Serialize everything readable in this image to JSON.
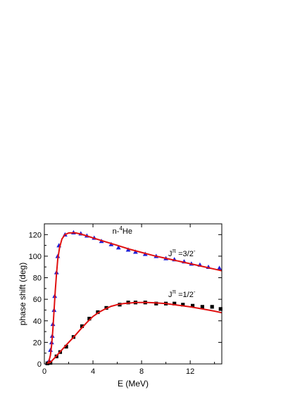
{
  "chart_data": {
    "type": "scatter",
    "title": "",
    "xlabel": "E (MeV)",
    "ylabel": "phase shift (deg)",
    "xlim": [
      0,
      14.6
    ],
    "ylim": [
      0,
      130
    ],
    "x_ticks": [
      0,
      4,
      8,
      12
    ],
    "y_ticks": [
      0,
      20,
      40,
      60,
      80,
      100,
      120
    ],
    "grid": false,
    "annotations": {
      "system": {
        "prefix": "n-",
        "sup": "4",
        "suffix": "He"
      },
      "j32": {
        "base": "J",
        "sup": "π",
        "rest": " =3/2",
        "sup2": "-"
      },
      "j12": {
        "base": "J",
        "sup": "π",
        "rest": " =1/2",
        "sup2": "-"
      }
    },
    "series": [
      {
        "key": "j32_points",
        "marker": "triangle",
        "color": "#1f1fd6",
        "points": [
          [
            0.25,
            1
          ],
          [
            0.4,
            3
          ],
          [
            0.5,
            13
          ],
          [
            0.6,
            20
          ],
          [
            0.65,
            26
          ],
          [
            0.7,
            37
          ],
          [
            0.8,
            50
          ],
          [
            0.85,
            63
          ],
          [
            1.0,
            85
          ],
          [
            1.1,
            100
          ],
          [
            1.2,
            110
          ],
          [
            1.7,
            120
          ],
          [
            2.4,
            122
          ],
          [
            3.0,
            121
          ],
          [
            3.5,
            119
          ],
          [
            4.1,
            117
          ],
          [
            4.7,
            114
          ],
          [
            5.5,
            111
          ],
          [
            6.1,
            108
          ],
          [
            6.9,
            106
          ],
          [
            7.5,
            104
          ],
          [
            8.3,
            102
          ],
          [
            9.2,
            100
          ],
          [
            10.0,
            98
          ],
          [
            10.7,
            97
          ],
          [
            11.5,
            95
          ],
          [
            12.1,
            93
          ],
          [
            12.8,
            92
          ],
          [
            13.5,
            90
          ],
          [
            14.4,
            89
          ]
        ]
      },
      {
        "key": "j12_points",
        "marker": "square",
        "color": "#000000",
        "points": [
          [
            0.25,
            0.5
          ],
          [
            0.5,
            1
          ],
          [
            1.0,
            7
          ],
          [
            1.3,
            11
          ],
          [
            1.8,
            16
          ],
          [
            2.4,
            25
          ],
          [
            3.1,
            35
          ],
          [
            3.7,
            42
          ],
          [
            4.4,
            48
          ],
          [
            5.1,
            52
          ],
          [
            6.2,
            55
          ],
          [
            6.9,
            57
          ],
          [
            7.5,
            57
          ],
          [
            8.3,
            57
          ],
          [
            9.2,
            56
          ],
          [
            10.0,
            56
          ],
          [
            10.7,
            56
          ],
          [
            11.4,
            55
          ],
          [
            12.2,
            54
          ],
          [
            13.0,
            53
          ],
          [
            13.8,
            53
          ],
          [
            14.5,
            51
          ]
        ]
      },
      {
        "key": "j32_fit",
        "type": "line",
        "color": "#e01010",
        "points": [
          [
            0.2,
            0
          ],
          [
            0.35,
            1.5
          ],
          [
            0.5,
            8
          ],
          [
            0.6,
            18
          ],
          [
            0.7,
            32
          ],
          [
            0.8,
            50
          ],
          [
            0.9,
            68
          ],
          [
            1.0,
            84
          ],
          [
            1.1,
            97
          ],
          [
            1.25,
            108
          ],
          [
            1.45,
            116
          ],
          [
            1.7,
            120
          ],
          [
            2.0,
            121.5
          ],
          [
            2.5,
            121.8
          ],
          [
            3.0,
            120.5
          ],
          [
            4.0,
            117
          ],
          [
            5.0,
            113.5
          ],
          [
            6.0,
            110
          ],
          [
            7.0,
            106.5
          ],
          [
            8.0,
            103.5
          ],
          [
            9.0,
            100.5
          ],
          [
            10.0,
            98
          ],
          [
            11.0,
            95.5
          ],
          [
            12.0,
            93
          ],
          [
            13.0,
            90.5
          ],
          [
            14.0,
            88
          ],
          [
            14.6,
            86.5
          ]
        ]
      },
      {
        "key": "j12_fit",
        "type": "line",
        "color": "#e01010",
        "points": [
          [
            0.2,
            0
          ],
          [
            0.5,
            1.5
          ],
          [
            0.8,
            5
          ],
          [
            1.2,
            10
          ],
          [
            1.6,
            15
          ],
          [
            2.0,
            20
          ],
          [
            2.5,
            26
          ],
          [
            3.0,
            32.5
          ],
          [
            3.5,
            38.5
          ],
          [
            4.0,
            44
          ],
          [
            4.5,
            48
          ],
          [
            5.0,
            51
          ],
          [
            5.5,
            53.5
          ],
          [
            6.0,
            55
          ],
          [
            6.5,
            56
          ],
          [
            7.0,
            56.5
          ],
          [
            7.5,
            57
          ],
          [
            8.0,
            57
          ],
          [
            8.5,
            57
          ],
          [
            9.0,
            56.8
          ],
          [
            10.0,
            56
          ],
          [
            11.0,
            54.5
          ],
          [
            12.0,
            53
          ],
          [
            13.0,
            51
          ],
          [
            14.0,
            49
          ],
          [
            14.6,
            47.5
          ]
        ]
      }
    ]
  }
}
